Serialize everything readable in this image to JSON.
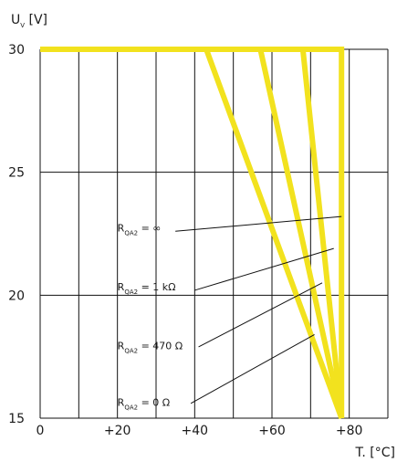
{
  "chart_data": {
    "type": "line",
    "ylabel": {
      "main": "U",
      "sub": "V",
      "unit": "[V]"
    },
    "xlabel": "T. [°C]",
    "xlim": [
      0,
      90
    ],
    "ylim": [
      15,
      30
    ],
    "x_ticks": [
      {
        "value": 0,
        "label": "0"
      },
      {
        "value": 20,
        "label": "+20"
      },
      {
        "value": 40,
        "label": "+40"
      },
      {
        "value": 60,
        "label": "+60"
      },
      {
        "value": 80,
        "label": "+80"
      }
    ],
    "y_ticks": [
      {
        "value": 15,
        "label": "15"
      },
      {
        "value": 20,
        "label": "20"
      },
      {
        "value": 25,
        "label": "25"
      },
      {
        "value": 30,
        "label": "30"
      }
    ],
    "x_grid": [
      0,
      10,
      20,
      30,
      40,
      50,
      60,
      70,
      80,
      90
    ],
    "y_grid": [
      15,
      20,
      25,
      30
    ],
    "line_color": "#f2e21e",
    "grid_color": "#111111",
    "series": [
      {
        "name": "R_qA2 = ∞",
        "points": [
          [
            0,
            30
          ],
          [
            78,
            30
          ],
          [
            78,
            15
          ]
        ]
      },
      {
        "name": "R_qA2 = 1 kΩ",
        "points": [
          [
            0,
            30
          ],
          [
            68,
            30
          ],
          [
            78,
            15
          ]
        ]
      },
      {
        "name": "R_qA2 = 470 Ω",
        "points": [
          [
            0,
            30
          ],
          [
            57,
            30
          ],
          [
            78,
            15
          ]
        ]
      },
      {
        "name": "R_qA2 = 0 Ω",
        "points": [
          [
            0,
            30
          ],
          [
            43,
            30
          ],
          [
            78,
            15
          ]
        ]
      }
    ],
    "annotations": [
      {
        "main": "R",
        "sub": "QA2",
        "rest": " = ∞",
        "text_at": [
          20,
          22.6
        ],
        "line_from": [
          35,
          22.6
        ],
        "line_to": [
          78,
          23.2
        ]
      },
      {
        "main": "R",
        "sub": "QA2",
        "rest": " = 1 kΩ",
        "text_at": [
          20,
          20.2
        ],
        "line_from": [
          40,
          20.2
        ],
        "line_to": [
          76,
          21.9
        ]
      },
      {
        "main": "R",
        "sub": "QA2",
        "rest": " = 470  Ω",
        "text_at": [
          20,
          17.8
        ],
        "line_from": [
          41,
          17.9
        ],
        "line_to": [
          73,
          20.5
        ]
      },
      {
        "main": "R",
        "sub": "QA2",
        "rest": " = 0  Ω",
        "text_at": [
          20,
          15.5
        ],
        "line_from": [
          39,
          15.6
        ],
        "line_to": [
          71,
          18.4
        ]
      }
    ]
  }
}
